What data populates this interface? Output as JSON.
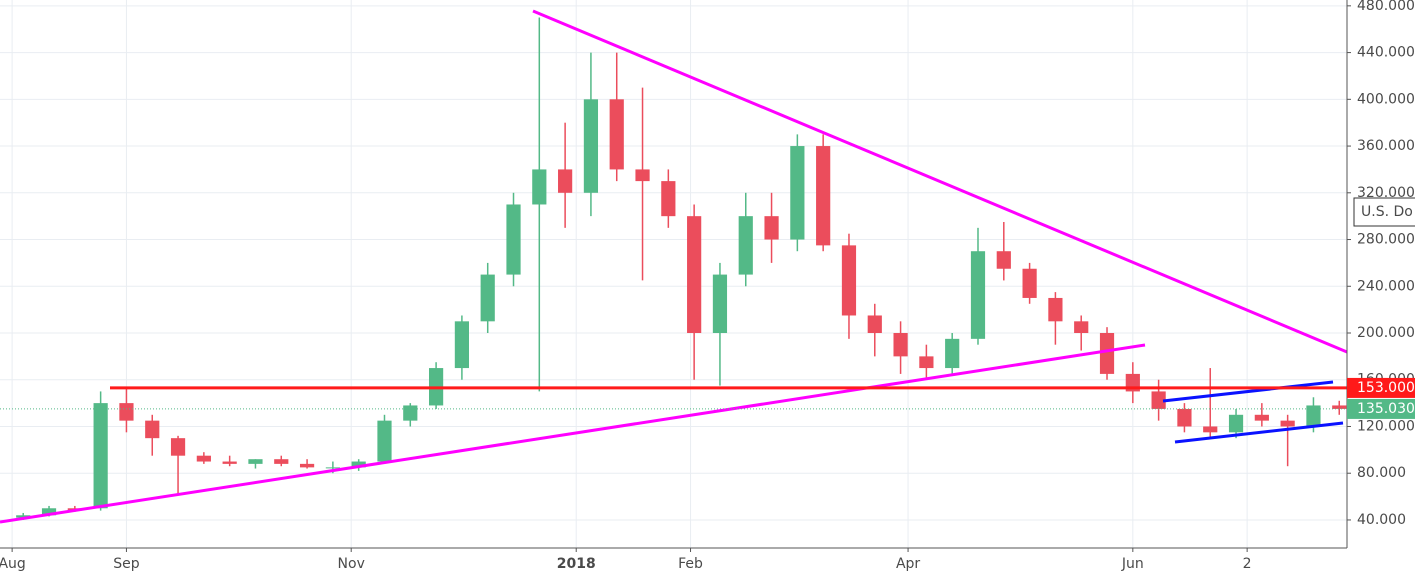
{
  "chart_data": {
    "type": "candlestick",
    "up_color": "#53b987",
    "down_color": "#eb4d5c",
    "open": [
      42,
      44,
      50,
      50,
      140,
      125,
      110,
      95,
      90,
      88,
      92,
      88,
      85,
      85,
      90,
      125,
      138,
      170,
      210,
      250,
      310,
      340,
      320,
      400,
      340,
      330,
      300,
      200,
      250,
      300,
      280,
      360,
      275,
      215,
      200,
      180,
      170,
      195,
      270,
      255,
      230,
      210,
      200,
      165,
      150,
      135,
      120,
      115,
      130,
      125,
      120,
      138
    ],
    "high": [
      46,
      52,
      52,
      150,
      153,
      130,
      112,
      98,
      95,
      92,
      95,
      92,
      90,
      92,
      130,
      140,
      175,
      215,
      260,
      320,
      470,
      380,
      440,
      440,
      410,
      340,
      310,
      260,
      320,
      320,
      370,
      370,
      285,
      225,
      210,
      190,
      200,
      290,
      295,
      260,
      235,
      215,
      205,
      175,
      160,
      140,
      170,
      135,
      140,
      130,
      145,
      142
    ],
    "low": [
      40,
      43,
      47,
      48,
      115,
      95,
      62,
      88,
      86,
      84,
      86,
      84,
      80,
      82,
      88,
      120,
      135,
      160,
      200,
      240,
      150,
      290,
      300,
      330,
      245,
      290,
      160,
      155,
      240,
      260,
      270,
      270,
      195,
      180,
      165,
      160,
      165,
      190,
      245,
      225,
      190,
      185,
      160,
      140,
      125,
      115,
      110,
      110,
      120,
      86,
      115,
      130
    ],
    "close": [
      44,
      50,
      48,
      140,
      125,
      110,
      95,
      90,
      88,
      92,
      88,
      85,
      85,
      90,
      125,
      138,
      170,
      210,
      250,
      310,
      340,
      320,
      400,
      340,
      330,
      300,
      200,
      250,
      300,
      280,
      360,
      275,
      215,
      200,
      180,
      170,
      195,
      270,
      255,
      230,
      210,
      200,
      165,
      150,
      135,
      120,
      115,
      130,
      125,
      120,
      138,
      135.03
    ],
    "xlim": [
      -0.9,
      51.3
    ],
    "xticks": [
      {
        "value": -0.43,
        "label": "Aug"
      },
      {
        "value": 4.0,
        "label": "Sep"
      },
      {
        "value": 12.71,
        "label": "Nov"
      },
      {
        "value": 21.43,
        "label": "2018"
      },
      {
        "value": 25.86,
        "label": "Feb"
      },
      {
        "value": 34.29,
        "label": "Apr"
      },
      {
        "value": 43.0,
        "label": "Jun"
      },
      {
        "value": 47.43,
        "label": "2"
      }
    ],
    "ylim": [
      16,
      485
    ],
    "yticks": [
      {
        "value": 40,
        "label": "40.000"
      },
      {
        "value": 80,
        "label": "80.000"
      },
      {
        "value": 120,
        "label": "120.000"
      },
      {
        "value": 160,
        "label": "160.000"
      },
      {
        "value": 200,
        "label": "200.000"
      },
      {
        "value": 240,
        "label": "240.000"
      },
      {
        "value": 280,
        "label": "280.000"
      },
      {
        "value": 320,
        "label": "320.000"
      },
      {
        "value": 360,
        "label": "360.000"
      },
      {
        "value": 400,
        "label": "400.000"
      },
      {
        "value": 440,
        "label": "440.000"
      },
      {
        "value": 480,
        "label": "480.000"
      }
    ],
    "grid": true,
    "price_lines": [
      {
        "value": 153,
        "label": "153.000",
        "color": "#ff1a1a"
      },
      {
        "value": 135.03,
        "label": "135.030",
        "color": "#53b987"
      }
    ],
    "currency_label": "U.S. Do"
  }
}
